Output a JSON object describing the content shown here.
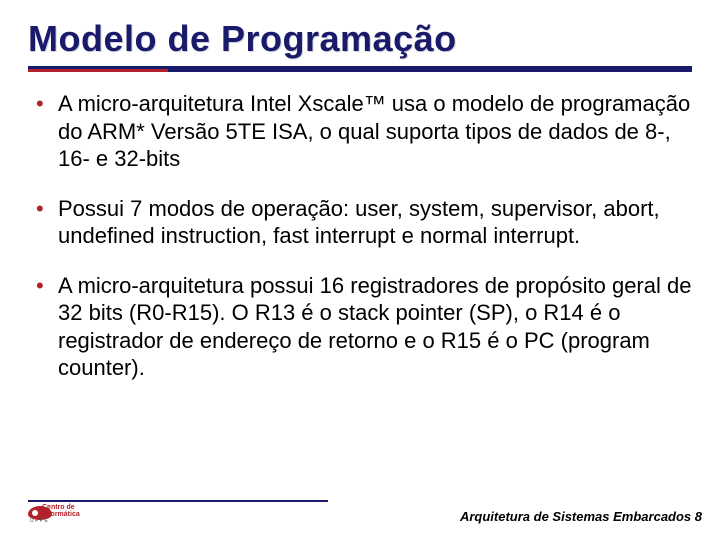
{
  "colors": {
    "title": "#1a1a6a",
    "rule_primary": "#1a1a6a",
    "rule_accent": "#b2222a",
    "bullet_marker": "#b2222a",
    "body_text": "#000000",
    "background": "#ffffff"
  },
  "typography": {
    "title_font": "Comic Sans MS",
    "title_size_pt": 36,
    "body_font": "Comic Sans MS",
    "body_size_pt": 22,
    "footer_font": "Arial",
    "footer_size_pt": 13,
    "footer_weight": "bold",
    "footer_style": "italic"
  },
  "title": "Modelo de Programação",
  "bullets": [
    "A micro-arquitetura Intel Xscale™ usa o modelo de programação do ARM* Versão 5TE ISA, o qual suporta tipos de dados de 8-, 16- e 32-bits",
    "Possui 7 modos de operação: user, system, supervisor, abort, undefined instruction, fast interrupt e normal interrupt.",
    "A micro-arquitetura possui 16 registradores de propósito geral de 32 bits (R0-R15). O R13 é o stack pointer (SP), o R14 é o registrador de endereço de retorno e o R15 é o PC (program counter)."
  ],
  "logo": {
    "main": "Centro de",
    "sub_line": "Informática",
    "letters": "UFPE"
  },
  "footer": {
    "text": "Arquitetura de Sistemas Embarcados 8"
  }
}
